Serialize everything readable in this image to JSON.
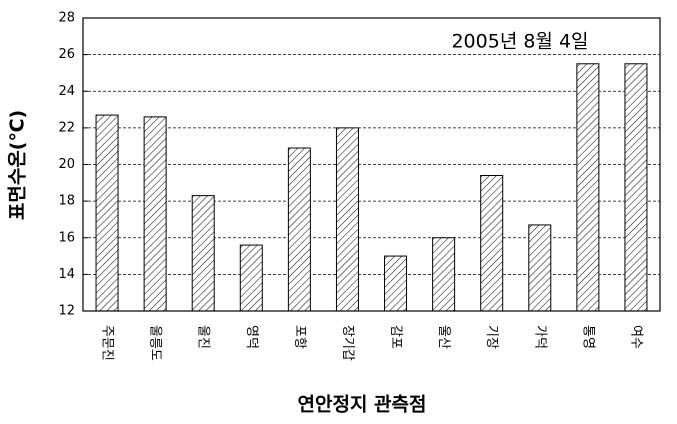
{
  "chart_data": {
    "type": "bar",
    "annotation": "2005년 8월 4일",
    "y_label": "표면수온(℃)",
    "x_label": "연안정지 관측점",
    "categories": [
      "주문진",
      "울릉도",
      "울진",
      "영덕",
      "포항",
      "장기갑",
      "감포",
      "울산",
      "기장",
      "가덕",
      "통영",
      "여수"
    ],
    "values": [
      22.7,
      22.6,
      18.3,
      15.6,
      20.9,
      22.0,
      15.0,
      16.0,
      19.4,
      16.7,
      25.5,
      25.5
    ],
    "color": "#000000",
    "ylim": [
      12,
      28
    ],
    "yticks": [
      12,
      14,
      16,
      18,
      20,
      22,
      24,
      26,
      28
    ],
    "grid": true
  }
}
